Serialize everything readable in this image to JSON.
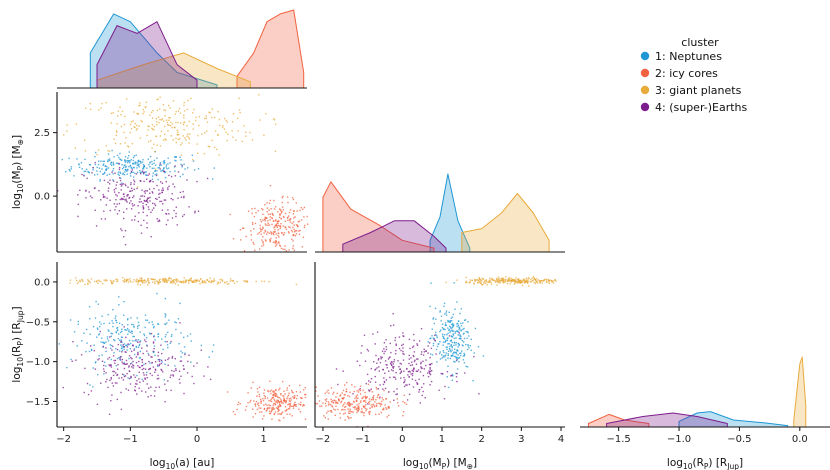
{
  "chart_data": {
    "type": "scatter",
    "layout": "pairplot",
    "title": "",
    "legend": {
      "title": "cluster",
      "placement": "top-right",
      "entries": [
        {
          "label": "1: Neptunes",
          "color": "#1f97d4"
        },
        {
          "label": "2: icy cores",
          "color": "#f26140"
        },
        {
          "label": "3: giant planets",
          "color": "#e8ab3c"
        },
        {
          "label": "4: (super-)Earths",
          "color": "#7d1c8c"
        }
      ]
    },
    "variables": {
      "a": {
        "label_main": "log",
        "label_sub": "10",
        "label_rest": "(a) [au]",
        "range": [
          -2.1,
          1.65
        ],
        "ticks": [
          "-2",
          "-1",
          "0",
          "1"
        ]
      },
      "M": {
        "label_main": "log",
        "label_sub": "10",
        "label_rest": "(M",
        "label_sub2": "P",
        "label_rest2": ") [M",
        "label_sub3": "⊕",
        "label_rest3": "]",
        "range": [
          -2.2,
          4.1
        ],
        "ticks": [
          "-2",
          "-1",
          "0",
          "1",
          "2",
          "3",
          "4"
        ],
        "yticks": [
          "2.5",
          "0.0"
        ]
      },
      "R": {
        "label_main": "log",
        "label_sub": "10",
        "label_rest": "(R",
        "label_sub2": "P",
        "label_rest2": ") [R",
        "label_sub3": "Jup",
        "label_rest3": "]",
        "range": [
          -1.82,
          0.25
        ],
        "ticks": [
          "-1.5",
          "-1.0",
          "-0.5",
          "0.0"
        ],
        "yticks": [
          "0.0",
          "-0.5",
          "-1.0",
          "-1.5"
        ]
      }
    },
    "clusters": [
      {
        "id": 1,
        "name": "1: Neptunes",
        "color": "#1f97d4",
        "a": {
          "mean": -1.0,
          "sd": 0.45,
          "kde": [
            [
              -1.6,
              0.45
            ],
            [
              -1.25,
              0.95
            ],
            [
              -1.0,
              0.85
            ],
            [
              -0.6,
              0.45
            ],
            [
              -0.3,
              0.2
            ],
            [
              0.0,
              0.12
            ],
            [
              0.3,
              0.04
            ]
          ]
        },
        "M": {
          "mean": 1.2,
          "sd": 0.25,
          "kde": [
            [
              0.7,
              0.15
            ],
            [
              0.95,
              0.45
            ],
            [
              1.15,
              1.0
            ],
            [
              1.4,
              0.4
            ],
            [
              1.7,
              0.05
            ]
          ]
        },
        "R": {
          "mean": -0.72,
          "sd": 0.2,
          "kde": [
            [
              -1.0,
              0.08
            ],
            [
              -0.85,
              0.2
            ],
            [
              -0.74,
              0.22
            ],
            [
              -0.55,
              0.1
            ],
            [
              -0.3,
              0.06
            ],
            [
              -0.1,
              0.02
            ]
          ]
        }
      },
      {
        "id": 2,
        "name": "2: icy cores",
        "color": "#f26140",
        "a": {
          "mean": 1.2,
          "sd": 0.25,
          "kde": [
            [
              0.6,
              0.15
            ],
            [
              0.85,
              0.45
            ],
            [
              1.05,
              0.85
            ],
            [
              1.25,
              0.95
            ],
            [
              1.45,
              1.0
            ],
            [
              1.6,
              0.2
            ]
          ]
        },
        "M": {
          "mean": -1.2,
          "sd": 0.5,
          "kde": [
            [
              -2.0,
              0.7
            ],
            [
              -1.8,
              0.9
            ],
            [
              -1.3,
              0.55
            ],
            [
              -0.6,
              0.35
            ],
            [
              0.0,
              0.15
            ],
            [
              0.8,
              0.05
            ]
          ]
        },
        "R": {
          "mean": -1.5,
          "sd": 0.1,
          "kde": [
            [
              -1.75,
              0.05
            ],
            [
              -1.58,
              0.18
            ],
            [
              -1.45,
              0.1
            ],
            [
              -1.25,
              0.05
            ]
          ]
        }
      },
      {
        "id": 3,
        "name": "3: giant planets",
        "color": "#e8ab3c",
        "a": {
          "mean": -0.5,
          "sd": 0.7,
          "kde": [
            [
              -1.5,
              0.1
            ],
            [
              -0.8,
              0.3
            ],
            [
              -0.2,
              0.45
            ],
            [
              0.3,
              0.25
            ],
            [
              0.8,
              0.08
            ]
          ]
        },
        "M": {
          "mean": 2.8,
          "sd": 0.6,
          "kde": [
            [
              1.5,
              0.25
            ],
            [
              2.0,
              0.3
            ],
            [
              2.5,
              0.5
            ],
            [
              2.9,
              0.75
            ],
            [
              3.3,
              0.5
            ],
            [
              3.7,
              0.15
            ]
          ]
        },
        "R": {
          "mean": 0.02,
          "sd": 0.02,
          "kde": [
            [
              -0.05,
              0.1
            ],
            [
              0.0,
              0.9
            ],
            [
              0.02,
              1.0
            ],
            [
              0.05,
              0.3
            ]
          ]
        }
      },
      {
        "id": 4,
        "name": "4: (super-)Earths",
        "color": "#7d1c8c",
        "a": {
          "mean": -0.9,
          "sd": 0.4,
          "kde": [
            [
              -1.5,
              0.3
            ],
            [
              -1.2,
              0.8
            ],
            [
              -0.9,
              0.7
            ],
            [
              -0.6,
              0.85
            ],
            [
              -0.3,
              0.3
            ],
            [
              0.0,
              0.1
            ]
          ]
        },
        "M": {
          "mean": 0.0,
          "sd": 0.6,
          "kde": [
            [
              -1.5,
              0.1
            ],
            [
              -0.8,
              0.25
            ],
            [
              -0.2,
              0.4
            ],
            [
              0.3,
              0.4
            ],
            [
              0.8,
              0.2
            ],
            [
              1.1,
              0.05
            ]
          ]
        },
        "R": {
          "mean": -1.05,
          "sd": 0.2,
          "kde": [
            [
              -1.6,
              0.05
            ],
            [
              -1.3,
              0.15
            ],
            [
              -1.05,
              0.2
            ],
            [
              -0.85,
              0.15
            ],
            [
              -0.6,
              0.05
            ]
          ]
        }
      }
    ]
  }
}
